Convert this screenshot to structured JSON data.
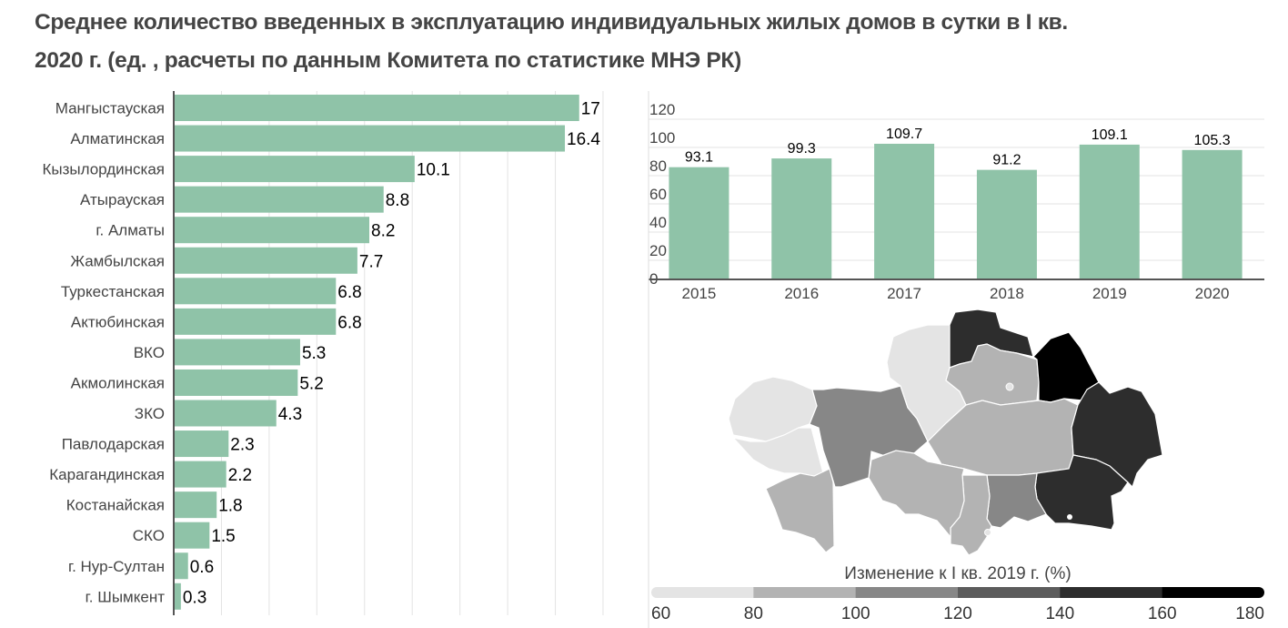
{
  "title": {
    "line1": "Среднее количество введенных в эксплуатацию индивидуальных жилых домов в сутки в I кв.",
    "line2": "2020 г. (ед. , расчеты по данным Комитета по статистике МНЭ РК)"
  },
  "colors": {
    "bar": "#8fc3a8",
    "text": "#444444",
    "grid": "#e3e3e3",
    "axis": "#555555"
  },
  "chart_data": [
    {
      "type": "bar",
      "orientation": "horizontal",
      "title": "",
      "categories": [
        "Мангыстауская",
        "Алматинская",
        "Кызылординская",
        "Атырауская",
        "г. Алматы",
        "Жамбылская",
        "Туркестанская",
        "Актюбинская",
        "ВКО",
        "Акмолинская",
        "ЗКО",
        "Павлодарская",
        "Карагандинская",
        "Костанайская",
        "СКО",
        "г. Нур-Султан",
        "г. Шымкент"
      ],
      "values": [
        17,
        16.4,
        10.1,
        8.8,
        8.2,
        7.7,
        6.8,
        6.8,
        5.3,
        5.2,
        4.3,
        2.3,
        2.2,
        1.8,
        1.5,
        0.6,
        0.3
      ],
      "value_labels": [
        "17",
        "16.4",
        "10.1",
        "8.8",
        "8.2",
        "7.7",
        "6.8",
        "6.8",
        "5.3",
        "5.2",
        "4.3",
        "2.3",
        "2.2",
        "1.8",
        "1.5",
        "0.6",
        "0.3"
      ],
      "xlim": [
        0,
        18
      ],
      "grid": true,
      "grid_step": 2
    },
    {
      "type": "bar",
      "orientation": "vertical",
      "title": "",
      "categories": [
        "2015",
        "2016",
        "2017",
        "2018",
        "2019",
        "2020"
      ],
      "values": [
        93.1,
        99.3,
        109.7,
        91.2,
        109.1,
        105.3
      ],
      "value_labels": [
        "93.1",
        "99.3",
        "109.7",
        "91.2",
        "109.1",
        "105.3"
      ],
      "ylim": [
        0,
        120
      ],
      "yticks": [
        "0",
        "20",
        "40",
        "60",
        "80",
        "100",
        "120"
      ],
      "grid": true
    },
    {
      "type": "choropleth",
      "legend": {
        "title": "Изменение к I кв. 2019 г. (%)",
        "ticks": [
          "60",
          "80",
          "100",
          "120",
          "140",
          "160",
          "180"
        ],
        "colors": [
          "#e4e4e4",
          "#b3b3b3",
          "#878787",
          "#5c5c5c",
          "#2d2d2d",
          "#000000"
        ]
      }
    }
  ]
}
